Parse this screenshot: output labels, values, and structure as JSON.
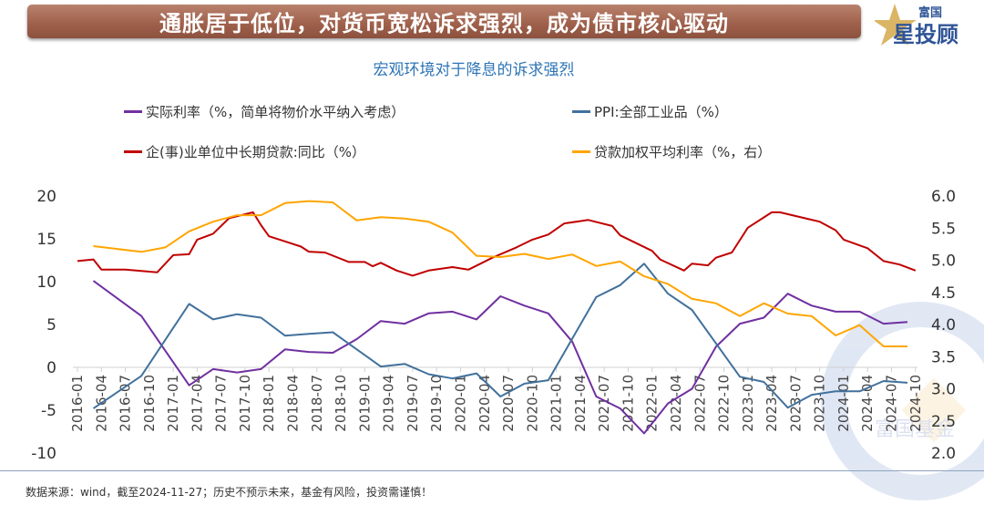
{
  "header": {
    "banner": "通胀居于低位，对货币宽松诉求强烈，成为债市核心驱动",
    "logo_text_top": "富国",
    "logo_text_main": "星投顾",
    "watermark": "富国基金"
  },
  "footer": {
    "source": "数据来源：wind，截至2024-11-27；历史不预示未来，基金有风险，投资需谨慎！"
  },
  "colors": {
    "real_rate": "#7030a0",
    "ppi": "#41719c",
    "loans": "#c00000",
    "lending_rate": "#ffa500",
    "title": "#2e75b6"
  },
  "chart_data": {
    "type": "line",
    "title": "宏观环境对于降息的诉求强烈",
    "legend_placement": "top",
    "x_range": [
      "2016-01",
      "2024-10"
    ],
    "x_ticks": [
      "2016-01",
      "2016-04",
      "2016-07",
      "2016-10",
      "2017-01",
      "2017-04",
      "2017-07",
      "2017-10",
      "2018-01",
      "2018-04",
      "2018-07",
      "2018-10",
      "2019-01",
      "2019-04",
      "2019-07",
      "2019-10",
      "2020-01",
      "2020-04",
      "2020-07",
      "2020-10",
      "2021-01",
      "2021-04",
      "2021-07",
      "2021-10",
      "2022-01",
      "2022-04",
      "2022-07",
      "2022-10",
      "2023-01",
      "2023-04",
      "2023-07",
      "2023-10",
      "2024-01",
      "2024-04",
      "2024-07",
      "2024-10"
    ],
    "y_left": {
      "range": [
        -10,
        20
      ],
      "ticks": [
        "20",
        "15",
        "10",
        "5",
        "0",
        "-5",
        "-10"
      ]
    },
    "y_right": {
      "range": [
        2.0,
        6.0
      ],
      "ticks": [
        "6.0",
        "5.5",
        "5.0",
        "4.5",
        "4.0",
        "3.5",
        "3.0",
        "2.5",
        "2.0"
      ]
    },
    "grid": false,
    "series": [
      {
        "name": "实际利率（%，简单将物价水平纳入考虑）",
        "axis": "left",
        "color": "#7030a0",
        "points": [
          [
            "2016-03",
            10.1
          ],
          [
            "2016-09",
            6.0
          ],
          [
            "2017-03",
            -2.1
          ],
          [
            "2017-06",
            -0.2
          ],
          [
            "2017-09",
            -0.6
          ],
          [
            "2017-12",
            -0.2
          ],
          [
            "2018-03",
            2.1
          ],
          [
            "2018-06",
            1.8
          ],
          [
            "2018-09",
            1.7
          ],
          [
            "2018-12",
            3.3
          ],
          [
            "2019-03",
            5.4
          ],
          [
            "2019-06",
            5.1
          ],
          [
            "2019-09",
            6.3
          ],
          [
            "2019-12",
            6.5
          ],
          [
            "2020-03",
            5.6
          ],
          [
            "2020-06",
            8.3
          ],
          [
            "2020-09",
            7.2
          ],
          [
            "2020-12",
            6.3
          ],
          [
            "2021-03",
            3.0
          ],
          [
            "2021-06",
            -3.4
          ],
          [
            "2021-09",
            -4.8
          ],
          [
            "2021-12",
            -7.7
          ],
          [
            "2022-03",
            -4.2
          ],
          [
            "2022-06",
            -2.5
          ],
          [
            "2022-09",
            2.4
          ],
          [
            "2022-12",
            5.1
          ],
          [
            "2023-03",
            5.8
          ],
          [
            "2023-06",
            8.6
          ],
          [
            "2023-09",
            7.2
          ],
          [
            "2023-12",
            6.5
          ],
          [
            "2024-03",
            6.5
          ],
          [
            "2024-06",
            5.1
          ],
          [
            "2024-09",
            5.3
          ]
        ]
      },
      {
        "name": "PPI:全部工业品（%）",
        "axis": "left",
        "color": "#41719c",
        "points": [
          [
            "2016-03",
            -4.8
          ],
          [
            "2016-09",
            -1.0
          ],
          [
            "2017-03",
            7.4
          ],
          [
            "2017-06",
            5.6
          ],
          [
            "2017-09",
            6.2
          ],
          [
            "2017-12",
            5.8
          ],
          [
            "2018-03",
            3.7
          ],
          [
            "2018-06",
            3.9
          ],
          [
            "2018-09",
            4.1
          ],
          [
            "2019-03",
            0.1
          ],
          [
            "2019-06",
            0.4
          ],
          [
            "2019-09",
            -0.8
          ],
          [
            "2019-12",
            -1.3
          ],
          [
            "2020-03",
            -0.7
          ],
          [
            "2020-06",
            -3.4
          ],
          [
            "2020-09",
            -1.9
          ],
          [
            "2020-12",
            -1.5
          ],
          [
            "2021-06",
            8.2
          ],
          [
            "2021-09",
            9.6
          ],
          [
            "2021-12",
            12.1
          ],
          [
            "2022-03",
            8.6
          ],
          [
            "2022-06",
            6.7
          ],
          [
            "2022-12",
            -1.1
          ],
          [
            "2023-03",
            -1.7
          ],
          [
            "2023-06",
            -4.7
          ],
          [
            "2023-09",
            -3.2
          ],
          [
            "2023-12",
            -2.8
          ],
          [
            "2024-03",
            -2.8
          ],
          [
            "2024-06",
            -1.6
          ],
          [
            "2024-09",
            -1.8
          ]
        ]
      },
      {
        "name": "企(事)业单位中长期贷款:同比（%）",
        "axis": "left",
        "color": "#c00000",
        "points": [
          [
            "2016-01",
            12.4
          ],
          [
            "2016-03",
            12.6
          ],
          [
            "2016-04",
            11.4
          ],
          [
            "2016-07",
            11.4
          ],
          [
            "2016-11",
            11.1
          ],
          [
            "2017-01",
            13.1
          ],
          [
            "2017-03",
            13.2
          ],
          [
            "2017-04",
            14.9
          ],
          [
            "2017-06",
            15.6
          ],
          [
            "2017-08",
            17.4
          ],
          [
            "2017-11",
            18.1
          ],
          [
            "2017-12",
            16.6
          ],
          [
            "2018-01",
            15.3
          ],
          [
            "2018-03",
            14.7
          ],
          [
            "2018-05",
            14.1
          ],
          [
            "2018-06",
            13.5
          ],
          [
            "2018-08",
            13.4
          ],
          [
            "2018-11",
            12.3
          ],
          [
            "2019-01",
            12.3
          ],
          [
            "2019-02",
            11.8
          ],
          [
            "2019-03",
            12.2
          ],
          [
            "2019-05",
            11.3
          ],
          [
            "2019-07",
            10.7
          ],
          [
            "2019-09",
            11.3
          ],
          [
            "2019-12",
            11.7
          ],
          [
            "2020-02",
            11.4
          ],
          [
            "2020-05",
            12.8
          ],
          [
            "2020-08",
            14.0
          ],
          [
            "2020-10",
            14.9
          ],
          [
            "2020-12",
            15.5
          ],
          [
            "2021-02",
            16.8
          ],
          [
            "2021-05",
            17.2
          ],
          [
            "2021-08",
            16.5
          ],
          [
            "2021-09",
            15.4
          ],
          [
            "2022-01",
            13.6
          ],
          [
            "2022-02",
            12.6
          ],
          [
            "2022-05",
            11.3
          ],
          [
            "2022-06",
            12.1
          ],
          [
            "2022-08",
            11.9
          ],
          [
            "2022-09",
            12.8
          ],
          [
            "2022-11",
            13.4
          ],
          [
            "2023-01",
            16.3
          ],
          [
            "2023-04",
            18.1
          ],
          [
            "2023-05",
            18.1
          ],
          [
            "2023-10",
            17.0
          ],
          [
            "2023-12",
            16.0
          ],
          [
            "2024-01",
            14.9
          ],
          [
            "2024-04",
            13.9
          ],
          [
            "2024-06",
            12.4
          ],
          [
            "2024-08",
            12.0
          ],
          [
            "2024-10",
            11.3
          ]
        ]
      },
      {
        "name": "贷款加权平均利率（%，右）",
        "axis": "right",
        "color": "#ffa500",
        "points": [
          [
            "2016-03",
            5.22
          ],
          [
            "2016-09",
            5.13
          ],
          [
            "2016-12",
            5.2
          ],
          [
            "2017-03",
            5.45
          ],
          [
            "2017-06",
            5.6
          ],
          [
            "2017-09",
            5.7
          ],
          [
            "2017-12",
            5.7
          ],
          [
            "2018-03",
            5.89
          ],
          [
            "2018-06",
            5.92
          ],
          [
            "2018-09",
            5.9
          ],
          [
            "2018-12",
            5.62
          ],
          [
            "2019-03",
            5.67
          ],
          [
            "2019-06",
            5.65
          ],
          [
            "2019-09",
            5.6
          ],
          [
            "2019-12",
            5.43
          ],
          [
            "2020-03",
            5.07
          ],
          [
            "2020-06",
            5.05
          ],
          [
            "2020-09",
            5.1
          ],
          [
            "2020-12",
            5.02
          ],
          [
            "2021-03",
            5.09
          ],
          [
            "2021-06",
            4.91
          ],
          [
            "2021-09",
            4.98
          ],
          [
            "2021-12",
            4.75
          ],
          [
            "2022-03",
            4.63
          ],
          [
            "2022-06",
            4.4
          ],
          [
            "2022-09",
            4.33
          ],
          [
            "2022-12",
            4.13
          ],
          [
            "2023-03",
            4.33
          ],
          [
            "2023-06",
            4.17
          ],
          [
            "2023-09",
            4.13
          ],
          [
            "2023-12",
            3.83
          ],
          [
            "2024-03",
            3.99
          ],
          [
            "2024-06",
            3.66
          ],
          [
            "2024-09",
            3.66
          ]
        ]
      }
    ]
  }
}
